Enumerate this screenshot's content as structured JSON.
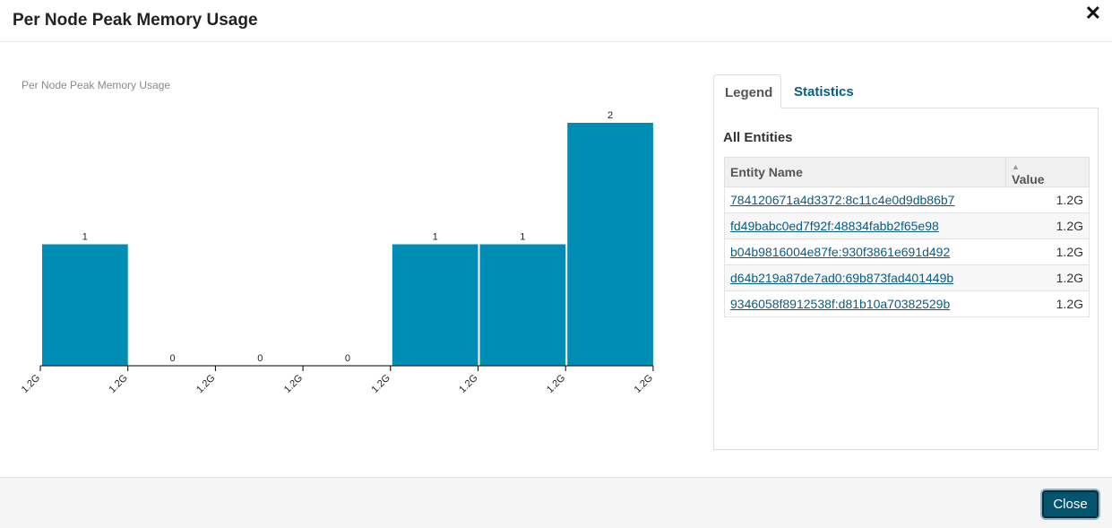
{
  "modal": {
    "title": "Per Node Peak Memory Usage",
    "close_label": "Close"
  },
  "chart_title": "Per Node Peak Memory Usage",
  "chart_data": {
    "type": "bar",
    "title": "Per Node Peak Memory Usage",
    "categories": [
      "1.2G",
      "1.2G",
      "1.2G",
      "1.2G",
      "1.2G",
      "1.2G",
      "1.2G"
    ],
    "values": [
      1,
      0,
      0,
      0,
      1,
      1,
      2
    ],
    "tick_labels": [
      "1.2G",
      "1.2G",
      "1.2G",
      "1.2G",
      "1.2G",
      "1.2G",
      "1.2G",
      "1.2G"
    ],
    "ylim": [
      0,
      2
    ],
    "grid": false,
    "bar_color": "#008db5"
  },
  "tabs": [
    {
      "label": "Legend",
      "active": true
    },
    {
      "label": "Statistics",
      "active": false
    }
  ],
  "legend_panel": {
    "heading": "All Entities",
    "columns": [
      "Entity Name",
      "Value"
    ],
    "rows": [
      {
        "name": "784120671a4d3372:8c11c4e0d9db86b7",
        "value": "1.2G"
      },
      {
        "name": "fd49babc0ed7f92f:48834fabb2f65e98",
        "value": "1.2G"
      },
      {
        "name": "b04b9816004e87fe:930f3861e691d492",
        "value": "1.2G"
      },
      {
        "name": "d64b219a87de7ad0:69b873fad401449b",
        "value": "1.2G"
      },
      {
        "name": "9346058f8912538f:d81b10a70382529b",
        "value": "1.2G"
      }
    ]
  },
  "colors": {
    "accent": "#008db5",
    "link": "#0b5c82",
    "button": "#04546f"
  }
}
